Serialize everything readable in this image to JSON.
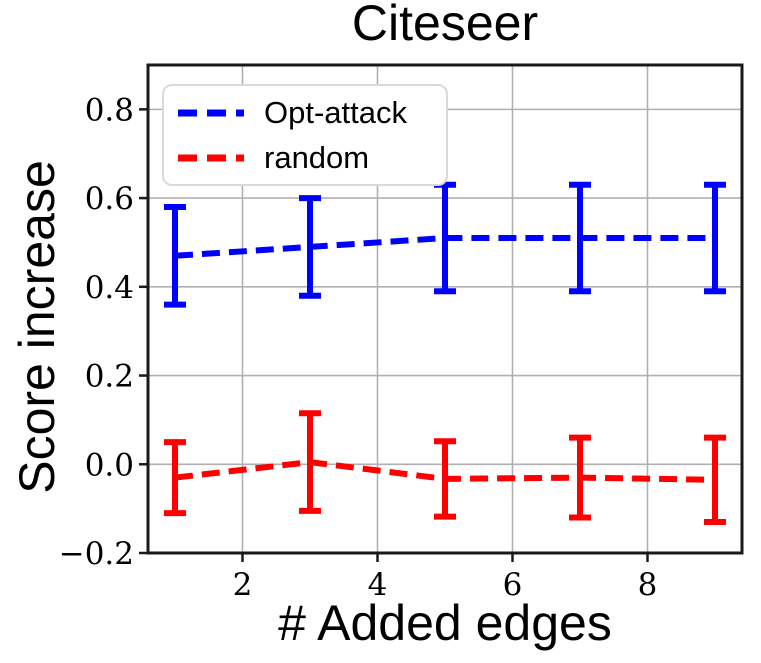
{
  "title": "Citeseer",
  "chart_data": {
    "type": "line",
    "title": "Citeseer",
    "xlabel": "# Added edges",
    "ylabel": "Score increase",
    "x": [
      1,
      3,
      5,
      7,
      9
    ],
    "series": [
      {
        "name": "Opt-attack",
        "color": "#0000ff",
        "linestyle": "dashed",
        "values": [
          0.47,
          0.49,
          0.51,
          0.51,
          0.51
        ],
        "errors": [
          0.11,
          0.11,
          0.12,
          0.12,
          0.12
        ]
      },
      {
        "name": "random",
        "color": "#ff0000",
        "linestyle": "dashed",
        "values": [
          -0.03,
          0.005,
          -0.033,
          -0.03,
          -0.035
        ],
        "errors": [
          0.08,
          0.11,
          0.085,
          0.09,
          0.095
        ]
      }
    ],
    "xtick_values": [
      2,
      4,
      6,
      8
    ],
    "xtick_labels": [
      "2",
      "4",
      "6",
      "8"
    ],
    "ytick_values": [
      -0.2,
      0.0,
      0.2,
      0.4,
      0.6,
      0.8
    ],
    "ytick_labels": [
      "−0.2",
      "0.0",
      "0.2",
      "0.4",
      "0.6",
      "0.8"
    ],
    "xlim": [
      0.6,
      9.4
    ],
    "ylim": [
      -0.2,
      0.9
    ],
    "grid": true,
    "legend_position": "upper-left"
  },
  "styles": {
    "grid_color": "#b0b0b0",
    "spine_color": "#1a1a1a",
    "tick_label_color": "#000000"
  }
}
